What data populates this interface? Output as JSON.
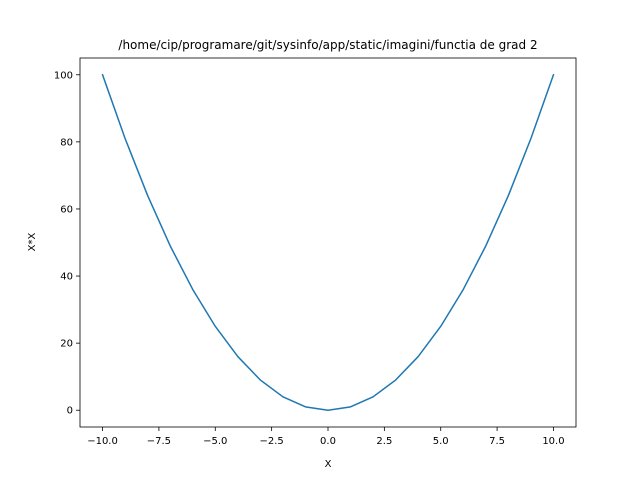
{
  "chart_data": {
    "type": "line",
    "title": "/home/cip/programare/git/sysinfo/app/static/imagini/functia de grad 2",
    "xlabel": "X",
    "ylabel": "X*X",
    "xlim": [
      -11,
      11
    ],
    "ylim": [
      -5,
      105
    ],
    "xticks": [
      -10.0,
      -7.5,
      -5.0,
      -2.5,
      0.0,
      2.5,
      5.0,
      7.5,
      10.0
    ],
    "xtick_labels": [
      "−10.0",
      "−7.5",
      "−5.0",
      "−2.5",
      "0.0",
      "2.5",
      "5.0",
      "7.5",
      "10.0"
    ],
    "yticks": [
      0,
      20,
      40,
      60,
      80,
      100
    ],
    "ytick_labels": [
      "0",
      "20",
      "40",
      "60",
      "80",
      "100"
    ],
    "grid": false,
    "series": [
      {
        "color": "#1f77b4",
        "x": [
          -10,
          -9,
          -8,
          -7,
          -6,
          -5,
          -4,
          -3,
          -2,
          -1,
          0,
          1,
          2,
          3,
          4,
          5,
          6,
          7,
          8,
          9,
          10
        ],
        "y": [
          100,
          81,
          64,
          49,
          36,
          25,
          16,
          9,
          4,
          1,
          0,
          1,
          4,
          9,
          16,
          25,
          36,
          49,
          64,
          81,
          100
        ]
      }
    ]
  }
}
